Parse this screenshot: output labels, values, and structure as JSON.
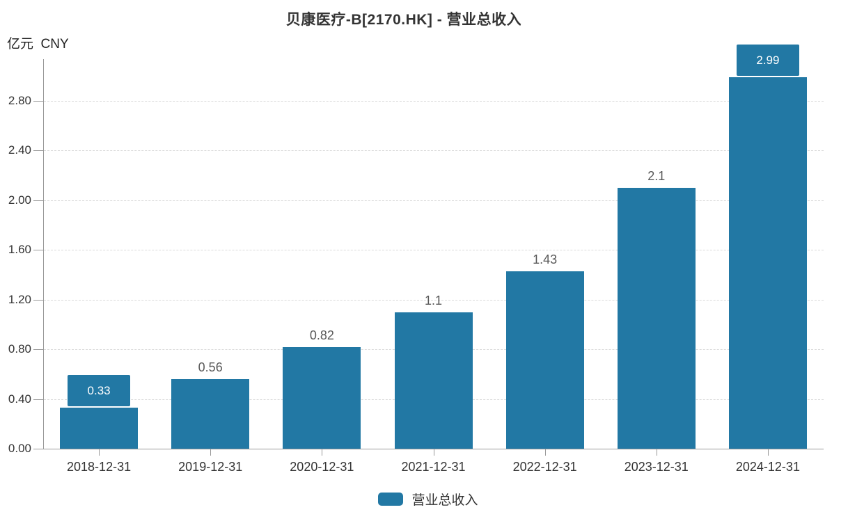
{
  "title": "贝康医疗-B[2170.HK] - 营业总收入",
  "unit_label": "亿元  CNY",
  "legend": {
    "label": "营业总收入"
  },
  "colors": {
    "bar": "#2278a4",
    "axis": "#999999",
    "grid": "#d9d9d9",
    "value_label_text": "#595959",
    "axis_text": "#333333",
    "tag_text": "#ffffff"
  },
  "chart_data": {
    "type": "bar",
    "title": "贝康医疗-B[2170.HK] - 营业总收入",
    "ylabel": "亿元 CNY",
    "categories": [
      "2018-12-31",
      "2019-12-31",
      "2020-12-31",
      "2021-12-31",
      "2022-12-31",
      "2023-12-31",
      "2024-12-31"
    ],
    "series": [
      {
        "name": "营业总收入",
        "values": [
          0.33,
          0.56,
          0.82,
          1.1,
          1.43,
          2.1,
          2.99
        ]
      }
    ],
    "value_labels": [
      "0.33",
      "0.56",
      "0.82",
      "1.1",
      "1.43",
      "2.1",
      "2.99"
    ],
    "boxed_label_indices": [
      0,
      6
    ],
    "y_ticks": [
      0,
      0.4,
      0.8,
      1.2,
      1.6,
      2.0,
      2.4,
      2.8
    ],
    "y_tick_labels": [
      "0.00",
      "0.40",
      "0.80",
      "1.20",
      "1.60",
      "2.00",
      "2.40",
      "2.80"
    ],
    "ylim": [
      0,
      3.2
    ],
    "grid": "horizontal-dashed",
    "legend_position": "bottom"
  }
}
